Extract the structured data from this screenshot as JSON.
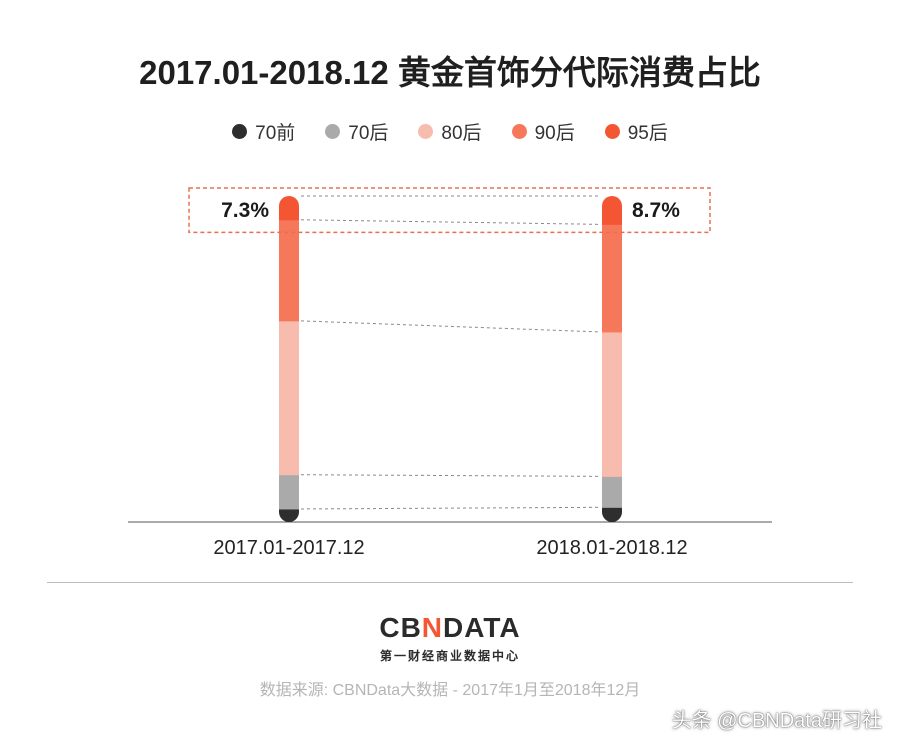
{
  "chart_data": {
    "type": "bar",
    "stacked": true,
    "title": "2017.01-2018.12 黄金首饰分代际消费占比",
    "categories": [
      "2017.01-2017.12",
      "2018.01-2018.12"
    ],
    "series": [
      {
        "name": "70前",
        "color": "#2e2e2e",
        "values": [
          4.0,
          4.5
        ]
      },
      {
        "name": "70后",
        "color": "#aaaaaa",
        "values": [
          10.5,
          9.5
        ]
      },
      {
        "name": "80后",
        "color": "#f8bcae",
        "values": [
          47.2,
          44.3
        ]
      },
      {
        "name": "90后",
        "color": "#f6785b",
        "values": [
          31.0,
          33.0
        ]
      },
      {
        "name": "95后",
        "color": "#f45533",
        "values": [
          7.3,
          8.7
        ]
      }
    ],
    "annotations": {
      "highlight_series": "95后",
      "labels": [
        "7.3%",
        "8.7%"
      ]
    },
    "ylim": [
      0,
      100
    ],
    "legend_position": "top-center"
  },
  "footer": {
    "brand_left": "CB",
    "brand_mid": "N",
    "brand_right": "DATA",
    "brand_sub": "第一财经商业数据中心",
    "source": "数据来源: CBNData大数据 - 2017年1月至2018年12月",
    "watermark": "头条 @CBNData研习社"
  },
  "colors": {
    "accent": "#f45533",
    "highlight_border": "#e8704f",
    "connector": "#8a8a8a"
  }
}
